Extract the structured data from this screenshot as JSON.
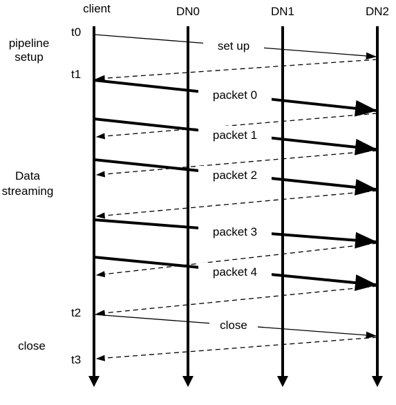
{
  "diagram": {
    "participants": [
      {
        "id": "client",
        "label": "client"
      },
      {
        "id": "dn0",
        "label": "DN0"
      },
      {
        "id": "dn1",
        "label": "DN1"
      },
      {
        "id": "dn2",
        "label": "DN2"
      }
    ],
    "time_labels": [
      "t0",
      "t1",
      "t2",
      "t3"
    ],
    "phases": [
      {
        "line1": "pipeline",
        "line2": "setup"
      },
      {
        "line1": "Data",
        "line2": "streaming"
      },
      {
        "line1": "close",
        "line2": ""
      }
    ],
    "messages": [
      {
        "id": "setup",
        "label": "set up"
      },
      {
        "id": "packet0",
        "label": "packet 0"
      },
      {
        "id": "packet1",
        "label": "packet 1"
      },
      {
        "id": "packet2",
        "label": "packet 2"
      },
      {
        "id": "packet3",
        "label": "packet 3"
      },
      {
        "id": "packet4",
        "label": "packet 4"
      },
      {
        "id": "close",
        "label": "close"
      }
    ]
  }
}
